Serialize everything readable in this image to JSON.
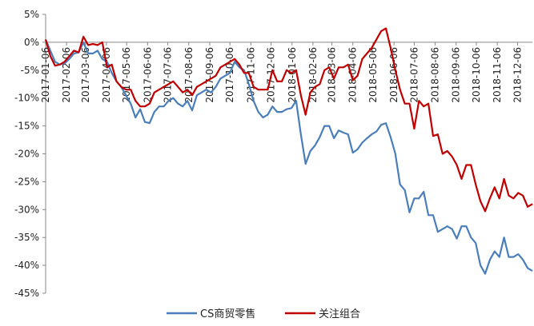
{
  "chart_data": {
    "type": "line",
    "title": "",
    "xlabel": "",
    "ylabel": "",
    "ylim": [
      -45,
      5
    ],
    "y_ticks": [
      5,
      0,
      -5,
      -10,
      -15,
      -20,
      -25,
      -30,
      -35,
      -40,
      -45
    ],
    "y_tick_labels": [
      "5%",
      "0%",
      "-5%",
      "-10%",
      "-15%",
      "-20%",
      "-25%",
      "-30%",
      "-35%",
      "-40%",
      "-45%"
    ],
    "x_tick_labels": [
      "2017-01-06",
      "2017-02-06",
      "2017-03-06",
      "2017-04-06",
      "2017-05-06",
      "2017-06-06",
      "2017-07-06",
      "2017-08-06",
      "2017-09-06",
      "2017-10-06",
      "2017-11-06",
      "2017-12-06",
      "2018-01-06",
      "2018-02-06",
      "2018-03-06",
      "2018-04-06",
      "2018-05-06",
      "2018-06-06",
      "2018-07-06",
      "2018-08-06",
      "2018-09-06",
      "2018-10-06",
      "2018-11-06",
      "2018-12-06"
    ],
    "x_range": [
      "2017-01-06",
      "2018-12-28"
    ],
    "legend_position": "bottom-center",
    "grid": false,
    "series": [
      {
        "name": "CS商贸零售",
        "color": "#4a7ebb",
        "points": [
          [
            "2017-01-06",
            0.5
          ],
          [
            "2017-01-13",
            -1.5
          ],
          [
            "2017-01-20",
            -3.5
          ],
          [
            "2017-01-27",
            -4.0
          ],
          [
            "2017-02-03",
            -3.8
          ],
          [
            "2017-02-10",
            -3.0
          ],
          [
            "2017-02-17",
            -2.0
          ],
          [
            "2017-02-24",
            -1.8
          ],
          [
            "2017-03-03",
            0.0
          ],
          [
            "2017-03-10",
            -2.0
          ],
          [
            "2017-03-17",
            -2.0
          ],
          [
            "2017-03-24",
            -1.5
          ],
          [
            "2017-03-31",
            -3.0
          ],
          [
            "2017-04-07",
            -3.5
          ],
          [
            "2017-04-14",
            -5.5
          ],
          [
            "2017-04-21",
            -7.0
          ],
          [
            "2017-04-28",
            -8.0
          ],
          [
            "2017-05-05",
            -9.5
          ],
          [
            "2017-05-12",
            -11.0
          ],
          [
            "2017-05-19",
            -13.5
          ],
          [
            "2017-05-26",
            -12.0
          ],
          [
            "2017-06-02",
            -14.3
          ],
          [
            "2017-06-09",
            -14.5
          ],
          [
            "2017-06-16",
            -12.5
          ],
          [
            "2017-06-23",
            -11.5
          ],
          [
            "2017-06-30",
            -11.5
          ],
          [
            "2017-07-07",
            -10.5
          ],
          [
            "2017-07-14",
            -10.0
          ],
          [
            "2017-07-21",
            -11.0
          ],
          [
            "2017-07-28",
            -11.5
          ],
          [
            "2017-08-04",
            -10.5
          ],
          [
            "2017-08-11",
            -12.2
          ],
          [
            "2017-08-18",
            -9.5
          ],
          [
            "2017-08-25",
            -9.0
          ],
          [
            "2017-09-01",
            -8.5
          ],
          [
            "2017-09-08",
            -9.0
          ],
          [
            "2017-09-15",
            -8.0
          ],
          [
            "2017-09-22",
            -6.5
          ],
          [
            "2017-09-29",
            -6.0
          ],
          [
            "2017-10-06",
            -5.5
          ],
          [
            "2017-10-13",
            -3.5
          ],
          [
            "2017-10-20",
            -4.5
          ],
          [
            "2017-10-27",
            -5.0
          ],
          [
            "2017-11-03",
            -7.5
          ],
          [
            "2017-11-10",
            -10.5
          ],
          [
            "2017-11-17",
            -12.5
          ],
          [
            "2017-11-24",
            -13.5
          ],
          [
            "2017-12-01",
            -13.0
          ],
          [
            "2017-12-08",
            -11.5
          ],
          [
            "2017-12-15",
            -12.5
          ],
          [
            "2017-12-22",
            -12.5
          ],
          [
            "2017-12-29",
            -12.0
          ],
          [
            "2018-01-05",
            -11.8
          ],
          [
            "2018-01-12",
            -10.5
          ],
          [
            "2018-01-19",
            -16.5
          ],
          [
            "2018-01-26",
            -21.8
          ],
          [
            "2018-02-02",
            -19.5
          ],
          [
            "2018-02-09",
            -18.5
          ],
          [
            "2018-02-16",
            -17.0
          ],
          [
            "2018-02-23",
            -15.0
          ],
          [
            "2018-03-02",
            -15.0
          ],
          [
            "2018-03-09",
            -17.2
          ],
          [
            "2018-03-16",
            -15.8
          ],
          [
            "2018-03-23",
            -16.2
          ],
          [
            "2018-03-30",
            -16.5
          ],
          [
            "2018-04-06",
            -19.8
          ],
          [
            "2018-04-13",
            -19.2
          ],
          [
            "2018-04-20",
            -18.0
          ],
          [
            "2018-04-27",
            -17.2
          ],
          [
            "2018-05-04",
            -16.5
          ],
          [
            "2018-05-11",
            -16.0
          ],
          [
            "2018-05-18",
            -14.8
          ],
          [
            "2018-05-25",
            -14.5
          ],
          [
            "2018-06-01",
            -17.0
          ],
          [
            "2018-06-08",
            -20.0
          ],
          [
            "2018-06-15",
            -25.5
          ],
          [
            "2018-06-22",
            -26.5
          ],
          [
            "2018-06-29",
            -30.5
          ],
          [
            "2018-07-06",
            -28.0
          ],
          [
            "2018-07-13",
            -28.0
          ],
          [
            "2018-07-20",
            -26.8
          ],
          [
            "2018-07-27",
            -31.0
          ],
          [
            "2018-08-03",
            -31.0
          ],
          [
            "2018-08-10",
            -34.0
          ],
          [
            "2018-08-17",
            -33.5
          ],
          [
            "2018-08-24",
            -33.0
          ],
          [
            "2018-08-31",
            -33.5
          ],
          [
            "2018-09-07",
            -35.2
          ],
          [
            "2018-09-14",
            -33.0
          ],
          [
            "2018-09-21",
            -33.0
          ],
          [
            "2018-09-28",
            -35.0
          ],
          [
            "2018-10-05",
            -36.0
          ],
          [
            "2018-10-12",
            -40.0
          ],
          [
            "2018-10-19",
            -41.5
          ],
          [
            "2018-10-26",
            -39.0
          ],
          [
            "2018-11-02",
            -37.5
          ],
          [
            "2018-11-09",
            -38.5
          ],
          [
            "2018-11-16",
            -35.0
          ],
          [
            "2018-11-23",
            -38.5
          ],
          [
            "2018-11-30",
            -38.5
          ],
          [
            "2018-12-07",
            -38.0
          ],
          [
            "2018-12-14",
            -39.0
          ],
          [
            "2018-12-21",
            -40.5
          ],
          [
            "2018-12-28",
            -41.0
          ]
        ]
      },
      {
        "name": "关注组合",
        "color": "#c00000",
        "points": [
          [
            "2017-01-06",
            0.5
          ],
          [
            "2017-01-13",
            -2.5
          ],
          [
            "2017-01-20",
            -4.2
          ],
          [
            "2017-01-27",
            -4.0
          ],
          [
            "2017-02-03",
            -3.5
          ],
          [
            "2017-02-10",
            -2.5
          ],
          [
            "2017-02-17",
            -1.5
          ],
          [
            "2017-02-24",
            -1.8
          ],
          [
            "2017-03-03",
            1.0
          ],
          [
            "2017-03-10",
            -0.5
          ],
          [
            "2017-03-17",
            -0.3
          ],
          [
            "2017-03-24",
            -0.5
          ],
          [
            "2017-03-31",
            0.0
          ],
          [
            "2017-04-07",
            -4.5
          ],
          [
            "2017-04-14",
            -4.0
          ],
          [
            "2017-04-21",
            -7.0
          ],
          [
            "2017-04-28",
            -8.0
          ],
          [
            "2017-05-05",
            -8.5
          ],
          [
            "2017-05-12",
            -8.5
          ],
          [
            "2017-05-19",
            -10.5
          ],
          [
            "2017-05-26",
            -11.5
          ],
          [
            "2017-06-02",
            -11.5
          ],
          [
            "2017-06-09",
            -11.0
          ],
          [
            "2017-06-16",
            -9.0
          ],
          [
            "2017-06-23",
            -8.5
          ],
          [
            "2017-06-30",
            -8.0
          ],
          [
            "2017-07-07",
            -7.5
          ],
          [
            "2017-07-14",
            -7.0
          ],
          [
            "2017-07-21",
            -8.0
          ],
          [
            "2017-07-28",
            -9.0
          ],
          [
            "2017-08-04",
            -8.5
          ],
          [
            "2017-08-11",
            -9.5
          ],
          [
            "2017-08-18",
            -8.0
          ],
          [
            "2017-08-25",
            -7.5
          ],
          [
            "2017-09-01",
            -7.0
          ],
          [
            "2017-09-08",
            -6.5
          ],
          [
            "2017-09-15",
            -6.0
          ],
          [
            "2017-09-22",
            -4.5
          ],
          [
            "2017-09-29",
            -4.0
          ],
          [
            "2017-10-06",
            -3.5
          ],
          [
            "2017-10-13",
            -3.0
          ],
          [
            "2017-10-20",
            -4.0
          ],
          [
            "2017-10-27",
            -5.5
          ],
          [
            "2017-11-03",
            -5.5
          ],
          [
            "2017-11-10",
            -8.0
          ],
          [
            "2017-11-17",
            -8.5
          ],
          [
            "2017-11-24",
            -8.5
          ],
          [
            "2017-12-01",
            -8.5
          ],
          [
            "2017-12-08",
            -5.0
          ],
          [
            "2017-12-15",
            -7.0
          ],
          [
            "2017-12-22",
            -7.0
          ],
          [
            "2017-12-29",
            -5.0
          ],
          [
            "2018-01-05",
            -5.5
          ],
          [
            "2018-01-12",
            -5.0
          ],
          [
            "2018-01-19",
            -9.5
          ],
          [
            "2018-01-26",
            -13.0
          ],
          [
            "2018-02-02",
            -9.0
          ],
          [
            "2018-02-09",
            -8.0
          ],
          [
            "2018-02-16",
            -7.5
          ],
          [
            "2018-02-23",
            -5.0
          ],
          [
            "2018-03-02",
            -4.5
          ],
          [
            "2018-03-09",
            -6.5
          ],
          [
            "2018-03-16",
            -4.5
          ],
          [
            "2018-03-23",
            -4.5
          ],
          [
            "2018-03-30",
            -4.0
          ],
          [
            "2018-04-06",
            -6.8
          ],
          [
            "2018-04-13",
            -6.0
          ],
          [
            "2018-04-20",
            -3.0
          ],
          [
            "2018-04-27",
            -2.0
          ],
          [
            "2018-05-04",
            -1.0
          ],
          [
            "2018-05-11",
            0.5
          ],
          [
            "2018-05-18",
            2.0
          ],
          [
            "2018-05-25",
            2.5
          ],
          [
            "2018-06-01",
            -1.0
          ],
          [
            "2018-06-08",
            -5.0
          ],
          [
            "2018-06-15",
            -8.5
          ],
          [
            "2018-06-22",
            -11.0
          ],
          [
            "2018-06-29",
            -11.0
          ],
          [
            "2018-07-06",
            -15.5
          ],
          [
            "2018-07-13",
            -10.5
          ],
          [
            "2018-07-20",
            -11.5
          ],
          [
            "2018-07-27",
            -11.0
          ],
          [
            "2018-08-03",
            -16.8
          ],
          [
            "2018-08-10",
            -16.5
          ],
          [
            "2018-08-17",
            -20.0
          ],
          [
            "2018-08-24",
            -19.5
          ],
          [
            "2018-08-31",
            -20.5
          ],
          [
            "2018-09-07",
            -22.0
          ],
          [
            "2018-09-14",
            -24.5
          ],
          [
            "2018-09-21",
            -22.0
          ],
          [
            "2018-09-28",
            -22.0
          ],
          [
            "2018-10-05",
            -25.5
          ],
          [
            "2018-10-12",
            -28.5
          ],
          [
            "2018-10-19",
            -30.3
          ],
          [
            "2018-10-26",
            -28.0
          ],
          [
            "2018-11-02",
            -26.0
          ],
          [
            "2018-11-09",
            -28.0
          ],
          [
            "2018-11-16",
            -24.5
          ],
          [
            "2018-11-23",
            -27.5
          ],
          [
            "2018-11-30",
            -28.0
          ],
          [
            "2018-12-07",
            -27.0
          ],
          [
            "2018-12-14",
            -27.5
          ],
          [
            "2018-12-21",
            -29.5
          ],
          [
            "2018-12-28",
            -29.0
          ]
        ]
      }
    ]
  }
}
